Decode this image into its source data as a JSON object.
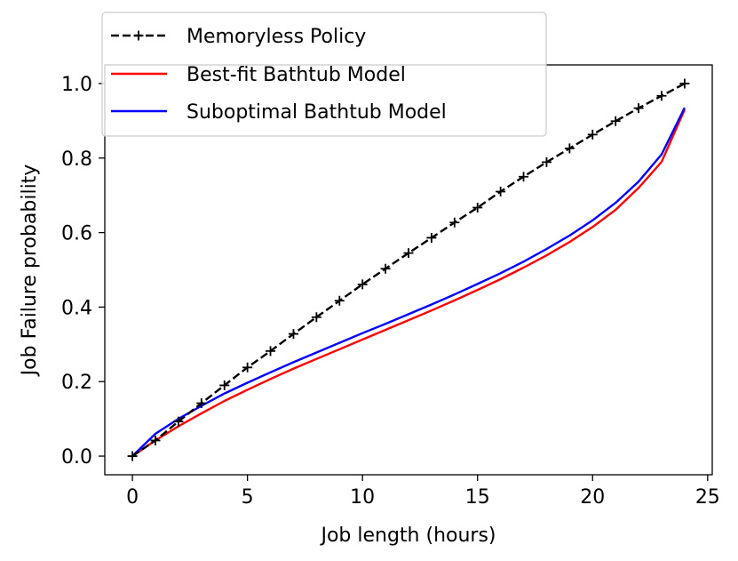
{
  "chart_data": {
    "type": "line",
    "xlabel": "Job length (hours)",
    "ylabel": "Job Failure probability",
    "xlim": [
      -1.2,
      25.2
    ],
    "ylim": [
      -0.05,
      1.05
    ],
    "xticks": [
      0,
      5,
      10,
      15,
      20,
      25
    ],
    "yticks": [
      0.0,
      0.2,
      0.4,
      0.6,
      0.8,
      1.0
    ],
    "xtick_labels": [
      "0",
      "5",
      "10",
      "15",
      "20",
      "25"
    ],
    "ytick_labels": [
      "0.0",
      "0.2",
      "0.4",
      "0.6",
      "0.8",
      "1.0"
    ],
    "grid": false,
    "legend_placement": "top-left",
    "x": [
      0,
      1,
      2,
      3,
      4,
      5,
      6,
      7,
      8,
      9,
      10,
      11,
      12,
      13,
      14,
      15,
      16,
      17,
      18,
      19,
      20,
      21,
      22,
      23,
      24
    ],
    "series": [
      {
        "name": "Memoryless Policy",
        "color": "#000000",
        "style": "dashed",
        "marker": "plus",
        "values": [
          0.0,
          0.042,
          0.093,
          0.142,
          0.19,
          0.238,
          0.282,
          0.328,
          0.373,
          0.417,
          0.461,
          0.503,
          0.545,
          0.586,
          0.627,
          0.667,
          0.71,
          0.75,
          0.789,
          0.826,
          0.863,
          0.899,
          0.934,
          0.967,
          1.0
        ]
      },
      {
        "name": "Best-fit Bathtub Model",
        "color": "#ff0000",
        "style": "solid",
        "marker": "none",
        "values": [
          0.0,
          0.042,
          0.08,
          0.115,
          0.148,
          0.178,
          0.207,
          0.235,
          0.261,
          0.287,
          0.313,
          0.339,
          0.365,
          0.391,
          0.418,
          0.446,
          0.475,
          0.506,
          0.539,
          0.575,
          0.615,
          0.661,
          0.72,
          0.79,
          0.93
        ]
      },
      {
        "name": "Suboptimal Bathtub Model",
        "color": "#0000ff",
        "style": "solid",
        "marker": "none",
        "values": [
          0.0,
          0.06,
          0.1,
          0.135,
          0.168,
          0.197,
          0.225,
          0.252,
          0.278,
          0.304,
          0.33,
          0.355,
          0.381,
          0.407,
          0.434,
          0.462,
          0.491,
          0.522,
          0.556,
          0.592,
          0.633,
          0.68,
          0.737,
          0.81,
          0.935
        ]
      }
    ]
  }
}
